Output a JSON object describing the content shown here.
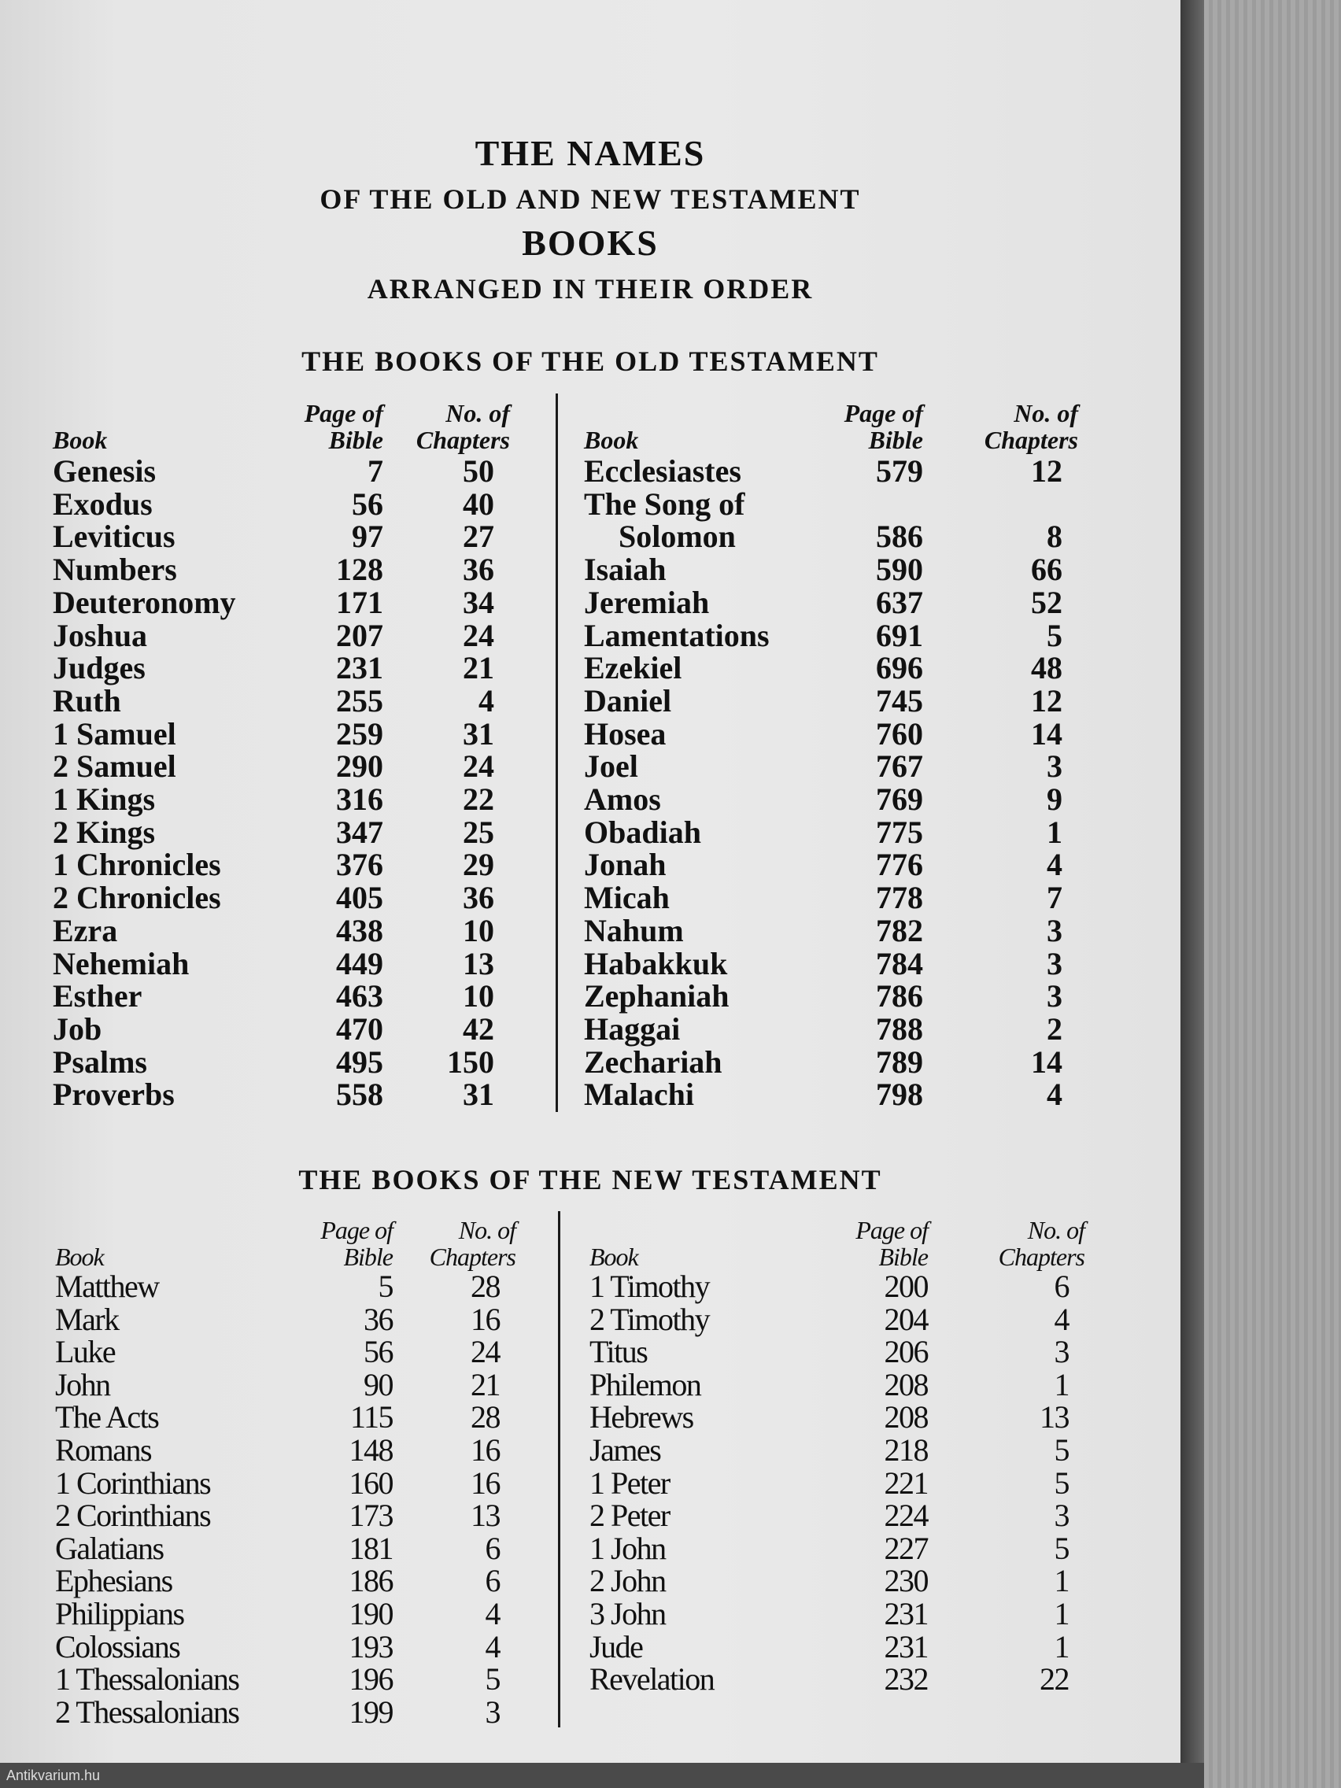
{
  "title": {
    "line1": "THE NAMES",
    "line2": "OF THE OLD AND NEW TESTAMENT",
    "line3": "BOOKS",
    "line4": "ARRANGED IN THEIR ORDER"
  },
  "headers": {
    "book": "Book",
    "page": [
      "Page of",
      "Bible"
    ],
    "chapters": [
      "No. of",
      "Chapters"
    ]
  },
  "old_testament": {
    "heading": "THE BOOKS OF THE OLD TESTAMENT",
    "left": [
      {
        "book": "Genesis",
        "page": "7",
        "chapters": "50"
      },
      {
        "book": "Exodus",
        "page": "56",
        "chapters": "40"
      },
      {
        "book": "Leviticus",
        "page": "97",
        "chapters": "27"
      },
      {
        "book": "Numbers",
        "page": "128",
        "chapters": "36"
      },
      {
        "book": "Deuteronomy",
        "page": "171",
        "chapters": "34"
      },
      {
        "book": "Joshua",
        "page": "207",
        "chapters": "24"
      },
      {
        "book": "Judges",
        "page": "231",
        "chapters": "21"
      },
      {
        "book": "Ruth",
        "page": "255",
        "chapters": "4"
      },
      {
        "book": "1 Samuel",
        "page": "259",
        "chapters": "31"
      },
      {
        "book": "2 Samuel",
        "page": "290",
        "chapters": "24"
      },
      {
        "book": "1 Kings",
        "page": "316",
        "chapters": "22"
      },
      {
        "book": "2 Kings",
        "page": "347",
        "chapters": "25"
      },
      {
        "book": "1 Chronicles",
        "page": "376",
        "chapters": "29"
      },
      {
        "book": "2 Chronicles",
        "page": "405",
        "chapters": "36"
      },
      {
        "book": "Ezra",
        "page": "438",
        "chapters": "10"
      },
      {
        "book": "Nehemiah",
        "page": "449",
        "chapters": "13"
      },
      {
        "book": "Esther",
        "page": "463",
        "chapters": "10"
      },
      {
        "book": "Job",
        "page": "470",
        "chapters": "42"
      },
      {
        "book": "Psalms",
        "page": "495",
        "chapters": "150"
      },
      {
        "book": "Proverbs",
        "page": "558",
        "chapters": "31"
      }
    ],
    "right": [
      {
        "book": "Ecclesiastes",
        "page": "579",
        "chapters": "12"
      },
      {
        "book": "The Song of",
        "page": "",
        "chapters": ""
      },
      {
        "book": "Solomon",
        "page": "586",
        "chapters": "8",
        "indent": true
      },
      {
        "book": "Isaiah",
        "page": "590",
        "chapters": "66"
      },
      {
        "book": "Jeremiah",
        "page": "637",
        "chapters": "52"
      },
      {
        "book": "Lamentations",
        "page": "691",
        "chapters": "5"
      },
      {
        "book": "Ezekiel",
        "page": "696",
        "chapters": "48"
      },
      {
        "book": "Daniel",
        "page": "745",
        "chapters": "12"
      },
      {
        "book": "Hosea",
        "page": "760",
        "chapters": "14"
      },
      {
        "book": "Joel",
        "page": "767",
        "chapters": "3"
      },
      {
        "book": "Amos",
        "page": "769",
        "chapters": "9"
      },
      {
        "book": "Obadiah",
        "page": "775",
        "chapters": "1"
      },
      {
        "book": "Jonah",
        "page": "776",
        "chapters": "4"
      },
      {
        "book": "Micah",
        "page": "778",
        "chapters": "7"
      },
      {
        "book": "Nahum",
        "page": "782",
        "chapters": "3"
      },
      {
        "book": "Habakkuk",
        "page": "784",
        "chapters": "3"
      },
      {
        "book": "Zephaniah",
        "page": "786",
        "chapters": "3"
      },
      {
        "book": "Haggai",
        "page": "788",
        "chapters": "2"
      },
      {
        "book": "Zechariah",
        "page": "789",
        "chapters": "14"
      },
      {
        "book": "Malachi",
        "page": "798",
        "chapters": "4"
      }
    ]
  },
  "new_testament": {
    "heading": "THE BOOKS OF THE NEW TESTAMENT",
    "left": [
      {
        "book": "Matthew",
        "page": "5",
        "chapters": "28"
      },
      {
        "book": "Mark",
        "page": "36",
        "chapters": "16"
      },
      {
        "book": "Luke",
        "page": "56",
        "chapters": "24"
      },
      {
        "book": "John",
        "page": "90",
        "chapters": "21"
      },
      {
        "book": "The Acts",
        "page": "115",
        "chapters": "28"
      },
      {
        "book": "Romans",
        "page": "148",
        "chapters": "16"
      },
      {
        "book": "1 Corinthians",
        "page": "160",
        "chapters": "16"
      },
      {
        "book": "2 Corinthians",
        "page": "173",
        "chapters": "13"
      },
      {
        "book": "Galatians",
        "page": "181",
        "chapters": "6"
      },
      {
        "book": "Ephesians",
        "page": "186",
        "chapters": "6"
      },
      {
        "book": "Philippians",
        "page": "190",
        "chapters": "4"
      },
      {
        "book": "Colossians",
        "page": "193",
        "chapters": "4"
      },
      {
        "book": "1 Thessalonians",
        "page": "196",
        "chapters": "5"
      },
      {
        "book": "2 Thessalonians",
        "page": "199",
        "chapters": "3"
      }
    ],
    "right": [
      {
        "book": "1 Timothy",
        "page": "200",
        "chapters": "6"
      },
      {
        "book": "2 Timothy",
        "page": "204",
        "chapters": "4"
      },
      {
        "book": "Titus",
        "page": "206",
        "chapters": "3"
      },
      {
        "book": "Philemon",
        "page": "208",
        "chapters": "1"
      },
      {
        "book": "Hebrews",
        "page": "208",
        "chapters": "13"
      },
      {
        "book": "James",
        "page": "218",
        "chapters": "5"
      },
      {
        "book": "1 Peter",
        "page": "221",
        "chapters": "5"
      },
      {
        "book": "2 Peter",
        "page": "224",
        "chapters": "3"
      },
      {
        "book": "1 John",
        "page": "227",
        "chapters": "5"
      },
      {
        "book": "2 John",
        "page": "230",
        "chapters": "1"
      },
      {
        "book": "3 John",
        "page": "231",
        "chapters": "1"
      },
      {
        "book": "Jude",
        "page": "231",
        "chapters": "1"
      },
      {
        "book": "Revelation",
        "page": "232",
        "chapters": "22"
      }
    ]
  },
  "watermark": "Antikvarium.hu"
}
